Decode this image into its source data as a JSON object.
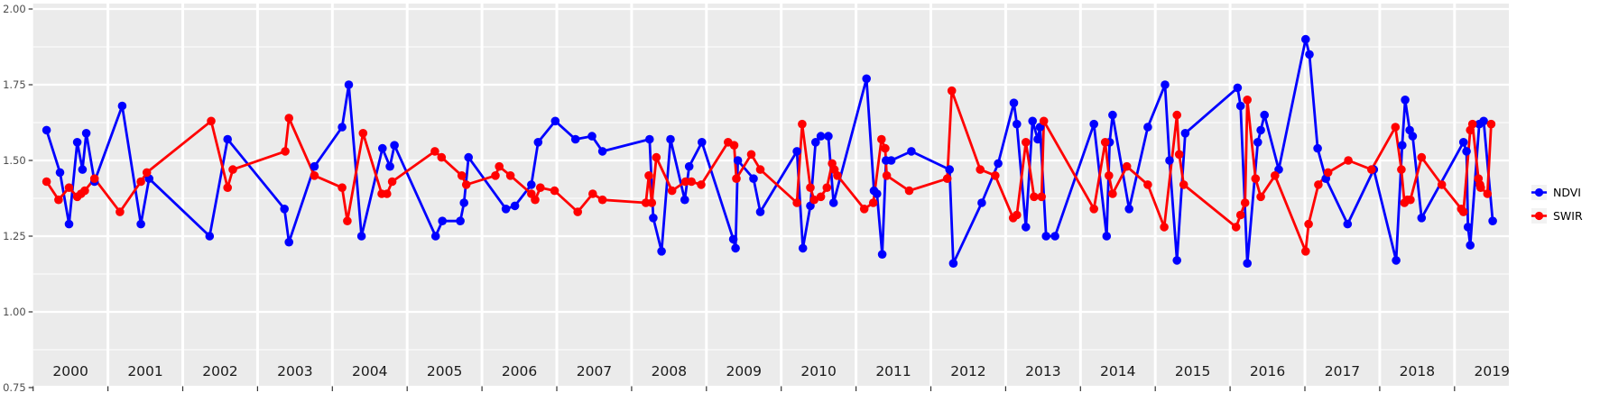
{
  "colors": {
    "panel_background": "#EBEBEB",
    "gridline": "#FFFFFF",
    "axis_text": "#4D4D4D",
    "year_text": "#1A1A1A",
    "ndvi": "#0000FF",
    "swir": "#FF0000",
    "legend_key_background": "#F2F2F2"
  },
  "legend": {
    "items": [
      {
        "label": "NDVI",
        "color": "#0000FF"
      },
      {
        "label": "SWIR",
        "color": "#FF0000"
      }
    ]
  },
  "chart_data": {
    "type": "line",
    "title": "",
    "xlabel": "",
    "ylabel": "",
    "grid": "white major+minor gridlines on gray panel",
    "legend_position": "right",
    "ylim": [
      0.75,
      2.0
    ],
    "xlim": [
      2000,
      2019.75
    ],
    "y_ticks": [
      0.75,
      1.0,
      1.25,
      1.5,
      1.75,
      2.0
    ],
    "y_tick_labels": [
      "0.75",
      "1.00",
      "1.25",
      "1.50",
      "1.75",
      "2.00"
    ],
    "y_minor_ticks": [
      0.875,
      1.125,
      1.375,
      1.625,
      1.875
    ],
    "x_tick_labels": [
      "2000",
      "2001",
      "2002",
      "2003",
      "2004",
      "2005",
      "2006",
      "2007",
      "2008",
      "2009",
      "2010",
      "2011",
      "2012",
      "2013",
      "2014",
      "2015",
      "2016",
      "2017",
      "2018",
      "2019"
    ],
    "series": [
      {
        "name": "NDVI",
        "color": "#0000FF",
        "points": [
          [
            2000.18,
            1.6
          ],
          [
            2000.36,
            1.46
          ],
          [
            2000.48,
            1.29
          ],
          [
            2000.59,
            1.56
          ],
          [
            2000.66,
            1.47
          ],
          [
            2000.71,
            1.59
          ],
          [
            2000.82,
            1.43
          ],
          [
            2001.19,
            1.68
          ],
          [
            2001.44,
            1.29
          ],
          [
            2001.55,
            1.44
          ],
          [
            2002.36,
            1.25
          ],
          [
            2002.6,
            1.57
          ],
          [
            2003.36,
            1.34
          ],
          [
            2003.42,
            1.23
          ],
          [
            2003.76,
            1.48
          ],
          [
            2004.13,
            1.61
          ],
          [
            2004.22,
            1.75
          ],
          [
            2004.39,
            1.25
          ],
          [
            2004.67,
            1.54
          ],
          [
            2004.77,
            1.48
          ],
          [
            2004.83,
            1.55
          ],
          [
            2005.38,
            1.25
          ],
          [
            2005.47,
            1.3
          ],
          [
            2005.71,
            1.3
          ],
          [
            2005.76,
            1.36
          ],
          [
            2005.82,
            1.51
          ],
          [
            2006.32,
            1.34
          ],
          [
            2006.44,
            1.35
          ],
          [
            2006.66,
            1.42
          ],
          [
            2006.75,
            1.56
          ],
          [
            2006.98,
            1.63
          ],
          [
            2007.25,
            1.57
          ],
          [
            2007.47,
            1.58
          ],
          [
            2007.61,
            1.53
          ],
          [
            2008.24,
            1.57
          ],
          [
            2008.29,
            1.31
          ],
          [
            2008.4,
            1.2
          ],
          [
            2008.52,
            1.57
          ],
          [
            2008.71,
            1.37
          ],
          [
            2008.77,
            1.48
          ],
          [
            2008.94,
            1.56
          ],
          [
            2009.36,
            1.24
          ],
          [
            2009.39,
            1.21
          ],
          [
            2009.42,
            1.5
          ],
          [
            2009.63,
            1.44
          ],
          [
            2009.72,
            1.33
          ],
          [
            2010.21,
            1.53
          ],
          [
            2010.29,
            1.21
          ],
          [
            2010.39,
            1.35
          ],
          [
            2010.46,
            1.56
          ],
          [
            2010.53,
            1.58
          ],
          [
            2010.63,
            1.58
          ],
          [
            2010.7,
            1.36
          ],
          [
            2011.14,
            1.77
          ],
          [
            2011.24,
            1.4
          ],
          [
            2011.28,
            1.39
          ],
          [
            2011.35,
            1.19
          ],
          [
            2011.4,
            1.5
          ],
          [
            2011.47,
            1.5
          ],
          [
            2011.74,
            1.53
          ],
          [
            2012.25,
            1.47
          ],
          [
            2012.3,
            1.16
          ],
          [
            2012.68,
            1.36
          ],
          [
            2012.9,
            1.49
          ],
          [
            2013.11,
            1.69
          ],
          [
            2013.15,
            1.62
          ],
          [
            2013.27,
            1.28
          ],
          [
            2013.36,
            1.63
          ],
          [
            2013.43,
            1.57
          ],
          [
            2013.46,
            1.61
          ],
          [
            2013.54,
            1.25
          ],
          [
            2013.66,
            1.25
          ],
          [
            2014.18,
            1.62
          ],
          [
            2014.35,
            1.25
          ],
          [
            2014.39,
            1.56
          ],
          [
            2014.43,
            1.65
          ],
          [
            2014.65,
            1.34
          ],
          [
            2014.9,
            1.61
          ],
          [
            2015.13,
            1.75
          ],
          [
            2015.19,
            1.5
          ],
          [
            2015.29,
            1.17
          ],
          [
            2015.4,
            1.59
          ],
          [
            2016.1,
            1.74
          ],
          [
            2016.14,
            1.68
          ],
          [
            2016.23,
            1.16
          ],
          [
            2016.37,
            1.56
          ],
          [
            2016.41,
            1.6
          ],
          [
            2016.46,
            1.65
          ],
          [
            2016.65,
            1.47
          ],
          [
            2017.01,
            1.9
          ],
          [
            2017.06,
            1.85
          ],
          [
            2017.17,
            1.54
          ],
          [
            2017.28,
            1.44
          ],
          [
            2017.57,
            1.29
          ],
          [
            2017.92,
            1.47
          ],
          [
            2018.22,
            1.17
          ],
          [
            2018.3,
            1.55
          ],
          [
            2018.34,
            1.7
          ],
          [
            2018.4,
            1.6
          ],
          [
            2018.44,
            1.58
          ],
          [
            2018.56,
            1.31
          ],
          [
            2019.12,
            1.56
          ],
          [
            2019.16,
            1.53
          ],
          [
            2019.18,
            1.28
          ],
          [
            2019.21,
            1.22
          ],
          [
            2019.33,
            1.62
          ],
          [
            2019.39,
            1.63
          ],
          [
            2019.51,
            1.3
          ]
        ]
      },
      {
        "name": "SWIR",
        "color": "#FF0000",
        "points": [
          [
            2000.18,
            1.43
          ],
          [
            2000.34,
            1.37
          ],
          [
            2000.48,
            1.41
          ],
          [
            2000.59,
            1.38
          ],
          [
            2000.64,
            1.39
          ],
          [
            2000.69,
            1.4
          ],
          [
            2000.82,
            1.44
          ],
          [
            2001.16,
            1.33
          ],
          [
            2001.44,
            1.43
          ],
          [
            2001.52,
            1.46
          ],
          [
            2002.38,
            1.63
          ],
          [
            2002.6,
            1.41
          ],
          [
            2002.67,
            1.47
          ],
          [
            2003.37,
            1.53
          ],
          [
            2003.42,
            1.64
          ],
          [
            2003.76,
            1.45
          ],
          [
            2004.13,
            1.41
          ],
          [
            2004.2,
            1.3
          ],
          [
            2004.41,
            1.59
          ],
          [
            2004.66,
            1.39
          ],
          [
            2004.73,
            1.39
          ],
          [
            2004.8,
            1.43
          ],
          [
            2005.37,
            1.53
          ],
          [
            2005.46,
            1.51
          ],
          [
            2005.73,
            1.45
          ],
          [
            2005.79,
            1.42
          ],
          [
            2006.18,
            1.45
          ],
          [
            2006.23,
            1.48
          ],
          [
            2006.38,
            1.45
          ],
          [
            2006.66,
            1.39
          ],
          [
            2006.71,
            1.37
          ],
          [
            2006.78,
            1.41
          ],
          [
            2006.97,
            1.4
          ],
          [
            2007.28,
            1.33
          ],
          [
            2007.48,
            1.39
          ],
          [
            2007.61,
            1.37
          ],
          [
            2008.19,
            1.36
          ],
          [
            2008.23,
            1.45
          ],
          [
            2008.27,
            1.36
          ],
          [
            2008.33,
            1.51
          ],
          [
            2008.54,
            1.4
          ],
          [
            2008.72,
            1.43
          ],
          [
            2008.8,
            1.43
          ],
          [
            2008.93,
            1.42
          ],
          [
            2009.29,
            1.56
          ],
          [
            2009.37,
            1.55
          ],
          [
            2009.4,
            1.44
          ],
          [
            2009.6,
            1.52
          ],
          [
            2009.72,
            1.47
          ],
          [
            2010.21,
            1.36
          ],
          [
            2010.28,
            1.62
          ],
          [
            2010.39,
            1.41
          ],
          [
            2010.44,
            1.37
          ],
          [
            2010.53,
            1.38
          ],
          [
            2010.61,
            1.41
          ],
          [
            2010.68,
            1.49
          ],
          [
            2010.71,
            1.47
          ],
          [
            2010.75,
            1.45
          ],
          [
            2011.11,
            1.34
          ],
          [
            2011.23,
            1.36
          ],
          [
            2011.34,
            1.57
          ],
          [
            2011.39,
            1.54
          ],
          [
            2011.41,
            1.45
          ],
          [
            2011.71,
            1.4
          ],
          [
            2012.22,
            1.44
          ],
          [
            2012.28,
            1.73
          ],
          [
            2012.66,
            1.47
          ],
          [
            2012.86,
            1.45
          ],
          [
            2013.1,
            1.31
          ],
          [
            2013.15,
            1.32
          ],
          [
            2013.27,
            1.56
          ],
          [
            2013.38,
            1.38
          ],
          [
            2013.48,
            1.38
          ],
          [
            2013.51,
            1.63
          ],
          [
            2014.18,
            1.34
          ],
          [
            2014.33,
            1.56
          ],
          [
            2014.38,
            1.45
          ],
          [
            2014.43,
            1.39
          ],
          [
            2014.62,
            1.48
          ],
          [
            2014.9,
            1.42
          ],
          [
            2015.12,
            1.28
          ],
          [
            2015.29,
            1.65
          ],
          [
            2015.32,
            1.52
          ],
          [
            2015.38,
            1.42
          ],
          [
            2016.08,
            1.28
          ],
          [
            2016.14,
            1.32
          ],
          [
            2016.2,
            1.36
          ],
          [
            2016.23,
            1.7
          ],
          [
            2016.34,
            1.44
          ],
          [
            2016.41,
            1.38
          ],
          [
            2016.6,
            1.45
          ],
          [
            2017.01,
            1.2
          ],
          [
            2017.05,
            1.29
          ],
          [
            2017.18,
            1.42
          ],
          [
            2017.31,
            1.46
          ],
          [
            2017.58,
            1.5
          ],
          [
            2017.89,
            1.47
          ],
          [
            2018.21,
            1.61
          ],
          [
            2018.29,
            1.47
          ],
          [
            2018.33,
            1.36
          ],
          [
            2018.37,
            1.37
          ],
          [
            2018.41,
            1.37
          ],
          [
            2018.56,
            1.51
          ],
          [
            2018.83,
            1.42
          ],
          [
            2019.09,
            1.34
          ],
          [
            2019.12,
            1.33
          ],
          [
            2019.21,
            1.6
          ],
          [
            2019.24,
            1.62
          ],
          [
            2019.32,
            1.44
          ],
          [
            2019.34,
            1.42
          ],
          [
            2019.35,
            1.41
          ],
          [
            2019.44,
            1.39
          ],
          [
            2019.49,
            1.62
          ]
        ]
      }
    ]
  }
}
